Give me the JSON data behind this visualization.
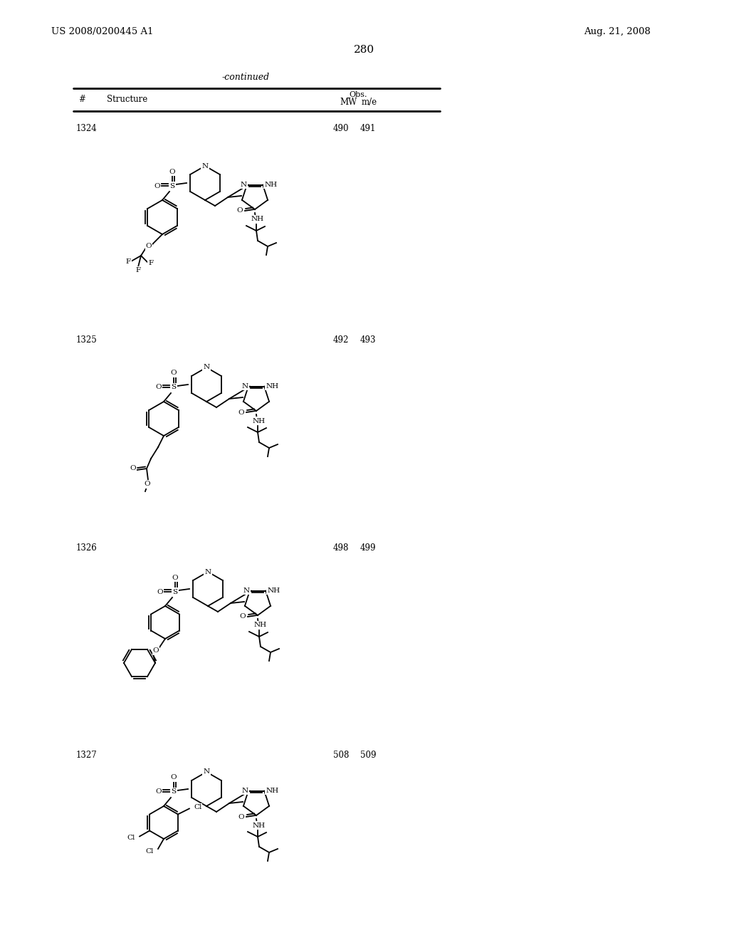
{
  "page_number": "280",
  "patent_number": "US 2008/0200445 A1",
  "patent_date": "Aug. 21, 2008",
  "continued": "-continued",
  "col_hash": "#",
  "col_structure": "Structure",
  "col_mw": "MW",
  "col_obs": "Obs.",
  "col_me": "m/e",
  "compounds": [
    {
      "number": "1324",
      "mw": "490",
      "obs_me": "491"
    },
    {
      "number": "1325",
      "mw": "492",
      "obs_me": "493"
    },
    {
      "number": "1326",
      "mw": "498",
      "obs_me": "499"
    },
    {
      "number": "1327",
      "mw": "508",
      "obs_me": "509"
    }
  ],
  "bg_color": "#ffffff",
  "text_color": "#000000"
}
